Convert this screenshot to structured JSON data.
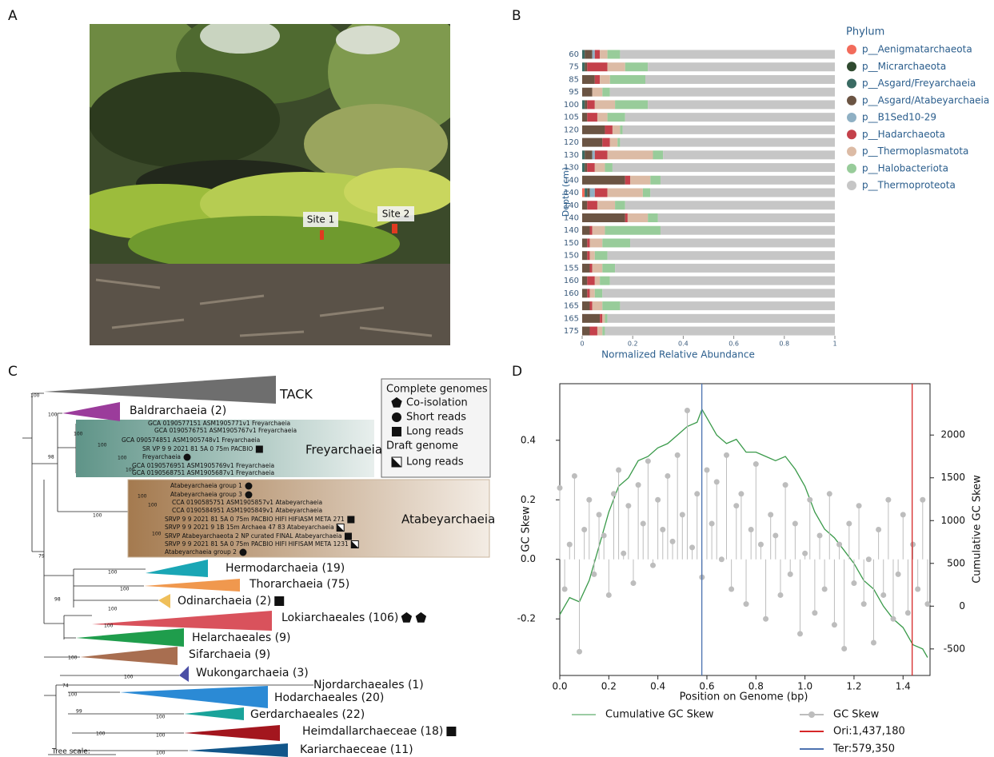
{
  "panel_labels": [
    "A",
    "B",
    "C",
    "D"
  ],
  "photo": {
    "labels": [
      "Site 1",
      "Site 2"
    ]
  },
  "tree": {
    "clades": [
      {
        "label": "TACK",
        "color": "#6e6e6e"
      },
      {
        "label": "Baldrarchaeia (2)",
        "color": "#9b3c9b"
      },
      {
        "label": "Hermodarchaeia (19)",
        "color": "#1aa6b5"
      },
      {
        "label": "Thorarchaeia (75)",
        "color": "#f0984e"
      },
      {
        "label": "Odinarchaeia (2)",
        "color": "#efbf5a"
      },
      {
        "label": "Lokiarchaeales (106)",
        "color": "#d9525c"
      },
      {
        "label": "Helarchaeales (9)",
        "color": "#1f9d4c"
      },
      {
        "label": "Sifarchaeia (9)",
        "color": "#a86e50"
      },
      {
        "label": "Wukongarchaeia (3)",
        "color": "#4b4fa6"
      },
      {
        "label": "Njordarchaeales (1)"
      },
      {
        "label": "Hodarchaeales (20)",
        "color": "#2b8ad5"
      },
      {
        "label": "Gerdarchaeales (22)",
        "color": "#1aa39a"
      },
      {
        "label": "Heimdallarchaeceae (18)",
        "color": "#a3161e"
      },
      {
        "label": "Kariarchaeceae (11)",
        "color": "#12568a"
      }
    ],
    "groups": [
      {
        "label": "Freyarchaeia",
        "color": "#5f9488"
      },
      {
        "label": "Atabeyarchaeia",
        "color": "#a47a4f"
      }
    ],
    "leaves": [
      "GCA 0190577151 ASM1905771v1 Freyarchaeia",
      "GCA 0190576751 ASM1905767v1 Freyarchaeia",
      "GCA 090574851 ASM1905748v1 Freyarchaeia",
      "SR VP 9 9 2021 81 5A 0 75m PACBIO",
      "Freyarchaeia",
      "GCA 0190576951 ASM1905769v1 Freyarchaeia",
      "GCA 0190568751 ASM1905687v1 Freyarchaeia",
      "Atabeyarchaeia group 1",
      "Atabeyarchaeia group 3",
      "CCA 0190585751 ASM1905857v1 Atabeyarchaeia",
      "CCA 0190584951 ASM1905849v1 Atabeyarchaeia",
      "SRVP 9 9 2021 81 5A 0 75m PACBIO HIFI HIFIASM META 271",
      "SRVP 9 9 2021 9 1B 15m Archaea 47 83 Atabeyarchaeia",
      "SRVP Atabeyarchaeota 2 NP curated FINAL Atabeyarchaeia",
      "SRVP 9 9 2021 81 5A 0 75m PACBIO HIFI HIFISAM META 1231",
      "Atabeyarchaeia group 2"
    ],
    "bootstraps": [
      100,
      100,
      100,
      100,
      100,
      100,
      98,
      100,
      100,
      100,
      100,
      79,
      100,
      100,
      98,
      100,
      100,
      100,
      100,
      100,
      74,
      99,
      100,
      100,
      100,
      100
    ],
    "legend": [
      "Complete genomes",
      "Co-isolation",
      "Short reads",
      "Long reads",
      "Draft genome",
      "Long reads"
    ],
    "scale_label": "Tree scale:"
  },
  "chart_data": [
    {
      "type": "bar",
      "orientation": "horizontal",
      "stacked": true,
      "xlabel": "Normalized Relative Abundance",
      "ylabel": "Depth (cm)",
      "legend_title": "Phylum",
      "categories": [
        "60",
        "75",
        "85",
        "95",
        "100",
        "105",
        "120",
        "120",
        "130",
        "130",
        "140",
        "140",
        "140",
        "140",
        "140",
        "150",
        "150",
        "155",
        "160",
        "160",
        "165",
        "165",
        "175"
      ],
      "xlim": [
        0,
        1
      ],
      "xticks": [
        0,
        0.2,
        0.4,
        0.6,
        0.8,
        1
      ],
      "series": [
        {
          "name": "p__Aenigmatarchaeota",
          "color": "#f26b5b",
          "values": [
            0,
            0,
            0,
            0,
            0,
            0,
            0,
            0,
            0,
            0,
            0,
            0.01,
            0,
            0,
            0,
            0,
            0,
            0,
            0,
            0,
            0,
            0,
            0
          ]
        },
        {
          "name": "p__Micrarchaeota",
          "color": "#2f4a2f",
          "values": [
            0,
            0,
            0,
            0,
            0,
            0,
            0,
            0,
            0,
            0,
            0,
            0,
            0,
            0,
            0,
            0,
            0,
            0,
            0,
            0,
            0,
            0,
            0
          ]
        },
        {
          "name": "p__Asgard/Freyarchaeia",
          "color": "#3a6b63",
          "values": [
            0.01,
            0.01,
            0,
            0,
            0.01,
            0,
            0,
            0,
            0.01,
            0.01,
            0,
            0.01,
            0,
            0,
            0,
            0,
            0,
            0,
            0,
            0,
            0,
            0,
            0
          ]
        },
        {
          "name": "p__Asgard/Atabeyarchaeia",
          "color": "#6b5443",
          "values": [
            0.03,
            0.01,
            0.05,
            0.04,
            0.01,
            0.02,
            0.09,
            0.08,
            0.03,
            0.01,
            0.17,
            0.01,
            0.02,
            0.17,
            0.03,
            0.02,
            0.02,
            0.03,
            0.02,
            0.02,
            0.03,
            0.07,
            0.03
          ]
        },
        {
          "name": "p__B1Sed10-29",
          "color": "#8fb0c4",
          "values": [
            0.01,
            0,
            0,
            0,
            0,
            0,
            0,
            0,
            0.01,
            0,
            0,
            0.02,
            0,
            0,
            0,
            0,
            0,
            0,
            0,
            0,
            0,
            0,
            0
          ]
        },
        {
          "name": "p__Hadarchaeota",
          "color": "#c4414b",
          "values": [
            0.02,
            0.08,
            0.02,
            0,
            0.03,
            0.04,
            0.03,
            0.03,
            0.05,
            0.03,
            0.02,
            0.05,
            0.04,
            0.01,
            0.01,
            0.01,
            0.01,
            0.01,
            0.03,
            0.01,
            0.01,
            0.01,
            0.03
          ]
        },
        {
          "name": "p__Thermoplasmatota",
          "color": "#dcbba5",
          "values": [
            0.03,
            0.07,
            0.04,
            0.04,
            0.08,
            0.04,
            0.03,
            0.03,
            0.18,
            0.04,
            0.08,
            0.14,
            0.07,
            0.08,
            0.05,
            0.05,
            0.02,
            0.04,
            0.02,
            0.02,
            0.04,
            0.01,
            0.02
          ]
        },
        {
          "name": "p__Halobacteriota",
          "color": "#98cc9a",
          "values": [
            0.05,
            0.09,
            0.14,
            0.03,
            0.13,
            0.07,
            0.01,
            0.01,
            0.04,
            0.03,
            0.04,
            0.03,
            0.04,
            0.04,
            0.22,
            0.11,
            0.05,
            0.05,
            0.04,
            0.03,
            0.07,
            0.01,
            0.01
          ]
        },
        {
          "name": "p__Thermoproteota",
          "color": "#c6c6c6",
          "values": [
            0.85,
            0.74,
            0.75,
            0.89,
            0.74,
            0.83,
            0.84,
            0.85,
            0.68,
            0.88,
            0.69,
            0.73,
            0.83,
            0.7,
            0.69,
            0.81,
            0.9,
            0.87,
            0.89,
            0.92,
            0.85,
            0.9,
            0.91
          ]
        }
      ]
    },
    {
      "type": "line",
      "xlabel": "Position on Genome (bp)",
      "ylabel": "GC Skew",
      "y2label": "Cumulative GC Skew",
      "xlim": [
        0,
        1.51
      ],
      "xticks": [
        {
          "value": 0,
          "label": "0.0"
        },
        0.2,
        0.4,
        0.6,
        0.8,
        {
          "value": 1,
          "label": "1.0"
        },
        1.2,
        1.4
      ],
      "ylim": [
        -0.39,
        0.59
      ],
      "yticks": [
        -0.2,
        {
          "value": 0,
          "label": "0.0"
        },
        0.2,
        0.4
      ],
      "y2lim": [
        -810,
        2600
      ],
      "y2ticks": [
        -500,
        0,
        500,
        1000,
        1500,
        2000
      ],
      "series": [
        {
          "name": "Cumulative GC Skew",
          "kind": "line",
          "axis": "y2",
          "color": "#3a9a4a",
          "x": [
            0,
            0.04,
            0.08,
            0.12,
            0.16,
            0.2,
            0.24,
            0.28,
            0.32,
            0.36,
            0.4,
            0.44,
            0.48,
            0.52,
            0.56,
            0.58,
            0.6,
            0.64,
            0.68,
            0.72,
            0.76,
            0.8,
            0.84,
            0.88,
            0.92,
            0.96,
            1,
            1.04,
            1.08,
            1.12,
            1.16,
            1.2,
            1.24,
            1.28,
            1.32,
            1.36,
            1.4,
            1.44,
            1.48,
            1.5
          ],
          "values": [
            -100,
            100,
            50,
            300,
            700,
            1100,
            1400,
            1500,
            1700,
            1750,
            1850,
            1900,
            2000,
            2100,
            2150,
            2300,
            2200,
            2000,
            1900,
            1950,
            1800,
            1800,
            1750,
            1700,
            1750,
            1600,
            1400,
            1100,
            900,
            800,
            650,
            500,
            300,
            200,
            0,
            -150,
            -250,
            -450,
            -500,
            -600
          ]
        },
        {
          "name": "GC Skew",
          "kind": "stem",
          "color": "#bdbdbd",
          "x": [
            0,
            0.02,
            0.04,
            0.06,
            0.08,
            0.1,
            0.12,
            0.14,
            0.16,
            0.18,
            0.2,
            0.22,
            0.24,
            0.26,
            0.28,
            0.3,
            0.32,
            0.34,
            0.36,
            0.38,
            0.4,
            0.42,
            0.44,
            0.46,
            0.48,
            0.5,
            0.52,
            0.54,
            0.56,
            0.58,
            0.6,
            0.62,
            0.64,
            0.66,
            0.68,
            0.7,
            0.72,
            0.74,
            0.76,
            0.78,
            0.8,
            0.82,
            0.84,
            0.86,
            0.88,
            0.9,
            0.92,
            0.94,
            0.96,
            0.98,
            1,
            1.02,
            1.04,
            1.06,
            1.08,
            1.1,
            1.12,
            1.14,
            1.16,
            1.18,
            1.2,
            1.22,
            1.24,
            1.26,
            1.28,
            1.3,
            1.32,
            1.34,
            1.36,
            1.38,
            1.4,
            1.42,
            1.44,
            1.46,
            1.48,
            1.5
          ],
          "values": [
            0.24,
            -0.1,
            0.05,
            0.28,
            -0.31,
            0.1,
            0.2,
            -0.05,
            0.15,
            0.08,
            -0.12,
            0.22,
            0.3,
            0.02,
            0.18,
            -0.08,
            0.25,
            0.12,
            0.33,
            -0.02,
            0.2,
            0.1,
            0.28,
            0.06,
            0.35,
            0.15,
            0.5,
            0.04,
            0.22,
            -0.06,
            0.3,
            0.12,
            0.26,
            0,
            0.35,
            -0.1,
            0.18,
            0.22,
            -0.15,
            0.1,
            0.32,
            0.05,
            -0.2,
            0.15,
            0.08,
            -0.12,
            0.25,
            -0.05,
            0.12,
            -0.25,
            0.02,
            0.2,
            -0.18,
            0.08,
            -0.1,
            0.22,
            -0.22,
            0.05,
            -0.3,
            0.12,
            -0.08,
            0.18,
            -0.15,
            0,
            -0.28,
            0.1,
            -0.12,
            0.2,
            -0.2,
            -0.05,
            0.15,
            -0.18,
            0.05,
            -0.1,
            0.2,
            -0.15
          ]
        }
      ],
      "vlines": [
        {
          "label": "Ori:1,437,180",
          "x": 1.43718,
          "color": "#d62728"
        },
        {
          "label": "Ter:579,350",
          "x": 0.57935,
          "color": "#4c72b0"
        }
      ]
    }
  ]
}
